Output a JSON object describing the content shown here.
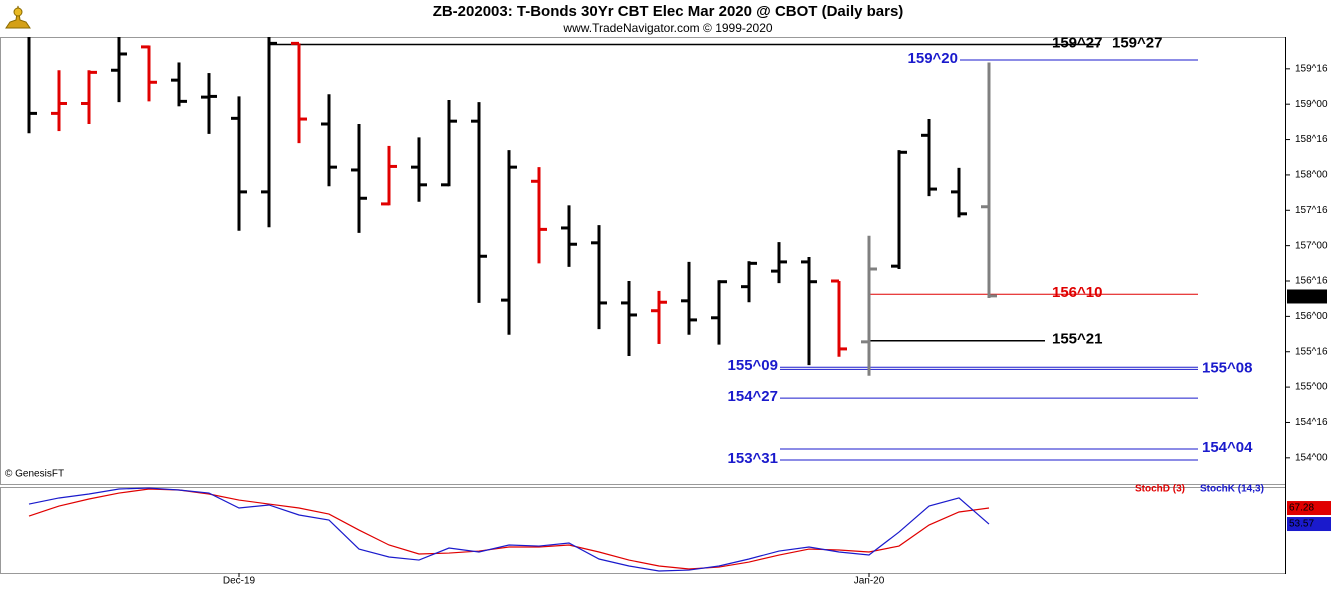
{
  "chart_data": {
    "type": "ohlc",
    "title": "ZB-202003:  T-Bonds 30Yr CBT Elec Mar 2020 @ CBOT  (Daily bars)",
    "subtitle": "www.TradeNavigator.com © 1999-2020",
    "watermark": "© GenesisFT",
    "categories": [
      null,
      null,
      null,
      null,
      null,
      null,
      null,
      "Dec-19",
      null,
      null,
      null,
      null,
      null,
      null,
      null,
      null,
      null,
      null,
      null,
      null,
      null,
      null,
      null,
      null,
      null,
      null,
      null,
      null,
      "Jan-20",
      null,
      null,
      null,
      null
    ],
    "open": [
      null,
      158.87,
      159.01,
      159.48,
      159.81,
      159.34,
      159.1,
      158.8,
      157.76,
      159.86,
      158.72,
      158.07,
      157.59,
      158.11,
      157.86,
      158.76,
      156.23,
      157.91,
      157.25,
      157.04,
      156.19,
      156.08,
      156.22,
      155.98,
      156.42,
      156.64,
      156.77,
      156.5,
      155.64,
      156.71,
      158.56,
      157.76,
      157.55
    ],
    "high": [
      159.95,
      159.48,
      159.48,
      159.95,
      159.83,
      159.59,
      159.44,
      159.11,
      159.95,
      159.86,
      159.14,
      158.72,
      158.41,
      158.53,
      159.06,
      159.03,
      158.35,
      158.11,
      157.57,
      157.29,
      156.5,
      156.36,
      156.77,
      156.51,
      156.78,
      157.05,
      156.84,
      156.5,
      157.14,
      158.35,
      158.79,
      158.1,
      159.59
    ],
    "low": [
      158.59,
      158.62,
      158.72,
      159.03,
      159.04,
      158.97,
      158.58,
      157.21,
      157.26,
      158.45,
      157.84,
      157.18,
      157.57,
      157.62,
      157.84,
      156.19,
      155.74,
      156.75,
      156.7,
      155.82,
      155.44,
      155.61,
      155.74,
      155.6,
      156.2,
      156.47,
      155.31,
      155.43,
      155.16,
      156.67,
      157.7,
      157.4,
      156.26
    ],
    "close": [
      158.87,
      159.01,
      159.45,
      159.71,
      159.31,
      159.04,
      159.11,
      157.76,
      159.86,
      158.79,
      158.11,
      157.67,
      158.12,
      157.86,
      158.76,
      156.85,
      158.11,
      157.23,
      157.02,
      156.19,
      156.02,
      156.2,
      155.95,
      156.49,
      156.75,
      156.77,
      156.49,
      155.54,
      156.67,
      158.32,
      157.8,
      157.45,
      156.29
    ],
    "bar_colors": [
      "#000000",
      "#e00000",
      "#e00000",
      "#000000",
      "#e00000",
      "#000000",
      "#000000",
      "#000000",
      "#000000",
      "#e00000",
      "#000000",
      "#000000",
      "#e00000",
      "#000000",
      "#000000",
      "#000000",
      "#000000",
      "#e00000",
      "#000000",
      "#000000",
      "#000000",
      "#e00000",
      "#000000",
      "#000000",
      "#000000",
      "#000000",
      "#000000",
      "#e00000",
      "#808080",
      "#000000",
      "#000000",
      "#000000",
      "#808080"
    ],
    "ylim": [
      153.63,
      159.95
    ],
    "yticks": [
      {
        "value": 159.5,
        "label": "159^16"
      },
      {
        "value": 159,
        "label": "159^00"
      },
      {
        "value": 158.5,
        "label": "158^16"
      },
      {
        "value": 158,
        "label": "158^00"
      },
      {
        "value": 157.5,
        "label": "157^16"
      },
      {
        "value": 157,
        "label": "157^00"
      },
      {
        "value": 156.5,
        "label": "156^16"
      },
      {
        "value": 156,
        "label": "156^00"
      },
      {
        "value": 155.5,
        "label": "155^16"
      },
      {
        "value": 155,
        "label": "155^00"
      },
      {
        "value": 154.5,
        "label": "154^16"
      },
      {
        "value": 154,
        "label": "154^00"
      }
    ],
    "levels": [
      {
        "label": "159^27",
        "value": 159.84375,
        "color": "#000000"
      },
      {
        "label": "159^20",
        "value": 159.625,
        "color": "#1a1acc"
      },
      {
        "label": "156^10",
        "value": 156.3125,
        "color": "#e00000"
      },
      {
        "label": "155^21",
        "value": 155.65625,
        "color": "#000000"
      },
      {
        "label": "155^09",
        "value": 155.28125,
        "color": "#1a1acc"
      },
      {
        "label": "155^08",
        "value": 155.25,
        "color": "#1a1acc"
      },
      {
        "label": "154^27",
        "value": 154.84375,
        "color": "#1a1acc"
      },
      {
        "label": "154^04",
        "value": 154.125,
        "color": "#1a1acc"
      },
      {
        "label": "153^31",
        "value": 153.96875,
        "color": "#1a1acc"
      }
    ],
    "last_price": {
      "value": 156.28125,
      "label": "156^09"
    },
    "indicator": {
      "type": "line",
      "ylim": [
        11.6,
        85.3
      ],
      "series": [
        {
          "name": "StochD (3)",
          "color": "#e00000",
          "values": [
            60.4,
            69.0,
            75.0,
            80.1,
            83.6,
            82.7,
            79.3,
            74.1,
            70.7,
            67.3,
            62.1,
            48.4,
            35.6,
            27.9,
            28.7,
            30.4,
            33.9,
            33.9,
            35.6,
            29.6,
            22.7,
            17.6,
            15.0,
            16.7,
            21.0,
            27.0,
            32.1,
            31.3,
            29.6,
            34.7,
            52.7,
            63.9,
            67.28
          ]
        },
        {
          "name": "StochK (14,3)",
          "color": "#1a1acc",
          "values": [
            70.7,
            75.9,
            79.3,
            83.6,
            84.4,
            82.7,
            80.1,
            67.3,
            69.9,
            61.3,
            57.0,
            32.1,
            25.3,
            22.7,
            33.0,
            29.6,
            35.6,
            34.7,
            37.3,
            23.6,
            17.6,
            13.3,
            14.1,
            17.6,
            23.6,
            30.4,
            33.9,
            29.6,
            27.0,
            46.7,
            69.0,
            75.9,
            53.57
          ]
        }
      ]
    }
  }
}
